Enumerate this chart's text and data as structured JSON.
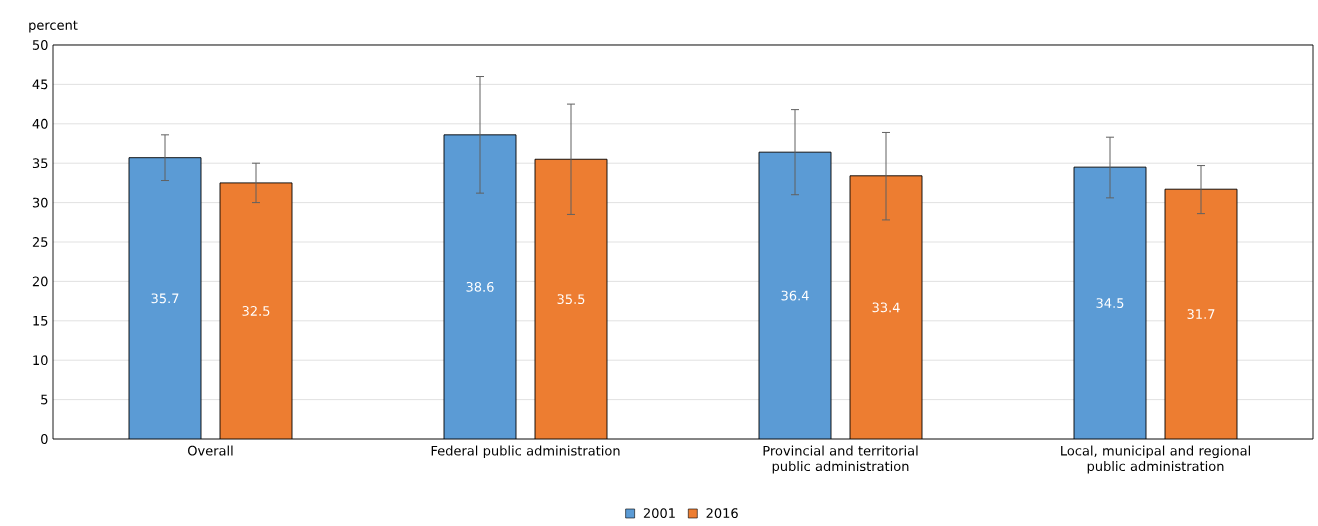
{
  "chart_data": {
    "type": "bar",
    "ylabel": "percent",
    "categories": [
      "Overall",
      "Federal public administration",
      "Provincial and territorial public administration",
      "Local, municipal and regional public administration"
    ],
    "series": [
      {
        "name": "2001",
        "color": "#5b9bd5",
        "values": [
          35.7,
          38.6,
          36.4,
          34.5
        ],
        "errors": [
          [
            32.8,
            38.6
          ],
          [
            31.2,
            46.0
          ],
          [
            31.0,
            41.8
          ],
          [
            30.6,
            38.3
          ]
        ]
      },
      {
        "name": "2016",
        "color": "#ed7d31",
        "values": [
          32.5,
          35.5,
          33.4,
          31.7
        ],
        "errors": [
          [
            30.0,
            35.0
          ],
          [
            28.5,
            42.5
          ],
          [
            27.8,
            38.9
          ],
          [
            28.6,
            34.7
          ]
        ]
      }
    ],
    "ylim": [
      0,
      50
    ],
    "yticks": [
      0,
      5,
      10,
      15,
      20,
      25,
      30,
      35,
      40,
      45,
      50
    ],
    "grid": "y",
    "legend": "bottom",
    "data_labels": true
  }
}
